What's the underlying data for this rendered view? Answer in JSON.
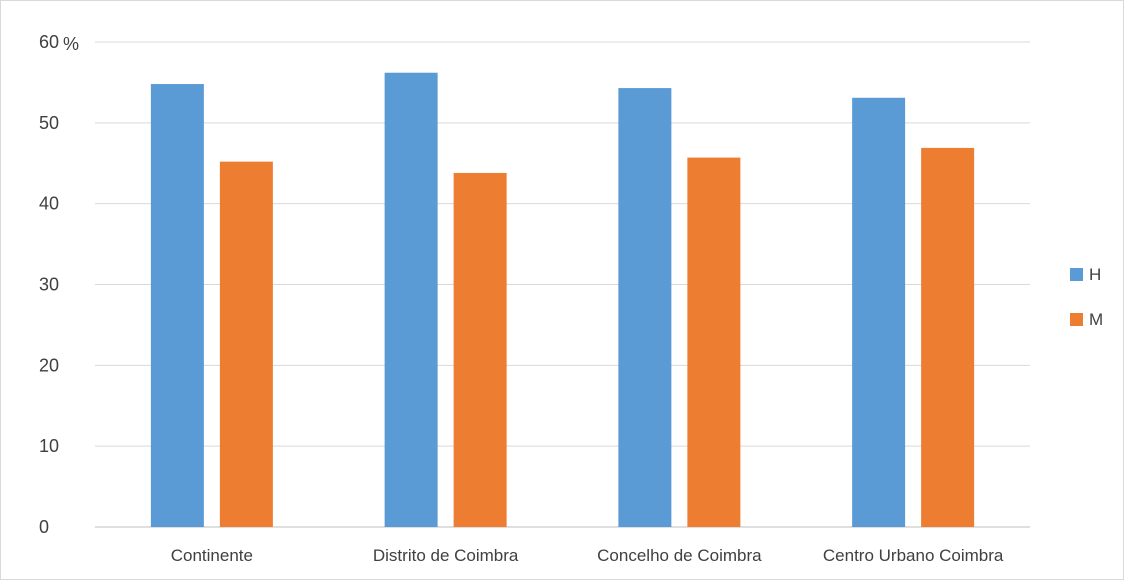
{
  "chart_data": {
    "type": "bar",
    "unit_label": "%",
    "categories": [
      "Continente",
      "Distrito de Coimbra",
      "Concelho de Coimbra",
      "Centro Urbano Coimbra"
    ],
    "series": [
      {
        "name": "H",
        "color": "#5B9BD5",
        "values": [
          54.8,
          56.2,
          54.3,
          53.1
        ]
      },
      {
        "name": "M",
        "color": "#ED7D31",
        "values": [
          45.2,
          43.8,
          45.7,
          46.9
        ]
      }
    ],
    "ylim": [
      0,
      60
    ],
    "yticks": [
      0,
      10,
      20,
      30,
      40,
      50,
      60
    ],
    "grid": true,
    "legend_position": "right"
  }
}
